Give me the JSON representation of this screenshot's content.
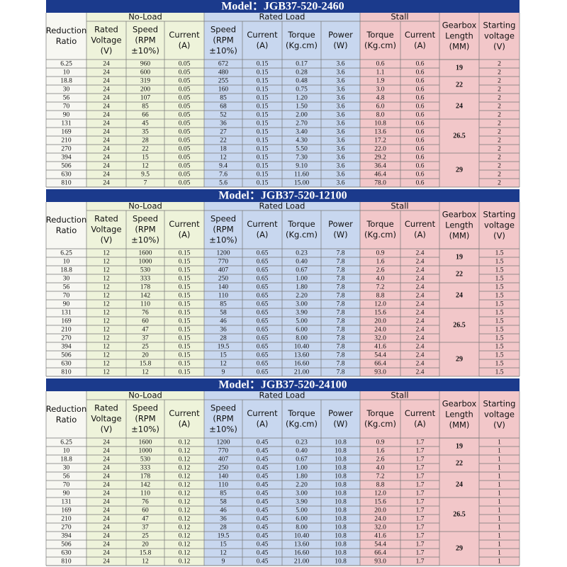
{
  "tables": [
    {
      "title": "Model：JGB37-520-2460",
      "groups": [
        "No-Load",
        "Rated Load",
        "Stall"
      ],
      "columns": [
        [
          "Reduction",
          "Ratio"
        ],
        [
          "Rated",
          "Voltage",
          "(V)"
        ],
        [
          "Speed",
          "(RPM",
          "±10%)"
        ],
        [
          "Current",
          "(A)"
        ],
        [
          "Speed",
          "(RPM",
          "±10%)"
        ],
        [
          "Current",
          "(A)"
        ],
        [
          "Torque",
          "(Kg.cm)"
        ],
        [
          "Power",
          "(W)"
        ],
        [
          "Torque",
          "(Kg.cm)"
        ],
        [
          "Current",
          "(A)"
        ],
        [
          "Gearbox",
          "Length",
          "(MM)"
        ],
        [
          "Starting",
          "voltage",
          "(V)"
        ]
      ],
      "rows": [
        [
          "6.25",
          "24",
          "960",
          "0.05",
          "672",
          "0.15",
          "0.17",
          "3.6",
          "0.6",
          "0.6",
          "19",
          "2"
        ],
        [
          "10",
          "24",
          "600",
          "0.05",
          "480",
          "0.15",
          "0.28",
          "3.6",
          "1.1",
          "0.6",
          null,
          "2"
        ],
        [
          "18.8",
          "24",
          "319",
          "0.05",
          "255",
          "0.15",
          "0.48",
          "3.6",
          "1.9",
          "0.6",
          "22",
          "2"
        ],
        [
          "30",
          "24",
          "200",
          "0.05",
          "160",
          "0.15",
          "0.75",
          "3.6",
          "3.0",
          "0.6",
          null,
          "2"
        ],
        [
          "56",
          "24",
          "107",
          "0.05",
          "85",
          "0.15",
          "1.20",
          "3.6",
          "4.8",
          "0.6",
          "24",
          "2"
        ],
        [
          "70",
          "24",
          "85",
          "0.05",
          "68",
          "0.15",
          "1.50",
          "3.6",
          "6.0",
          "0.6",
          null,
          "2"
        ],
        [
          "90",
          "24",
          "66",
          "0.05",
          "52",
          "0.15",
          "2.00",
          "3.6",
          "8.0",
          "0.6",
          null,
          "2"
        ],
        [
          "131",
          "24",
          "45",
          "0.05",
          "36",
          "0.15",
          "2.70",
          "3.6",
          "10.8",
          "0.6",
          "26.5",
          "2"
        ],
        [
          "169",
          "24",
          "35",
          "0.05",
          "27",
          "0.15",
          "3.40",
          "3.6",
          "13.6",
          "0.6",
          null,
          "2"
        ],
        [
          "210",
          "24",
          "28",
          "0.05",
          "22",
          "0.15",
          "4.30",
          "3.6",
          "17.2",
          "0.6",
          null,
          "2"
        ],
        [
          "270",
          "24",
          "22",
          "0.05",
          "18",
          "0.15",
          "5.50",
          "3.6",
          "22.0",
          "0.6",
          null,
          "2"
        ],
        [
          "394",
          "24",
          "15",
          "0.05",
          "12",
          "0.15",
          "7.30",
          "3.6",
          "29.2",
          "0.6",
          "29",
          "2"
        ],
        [
          "506",
          "24",
          "12",
          "0.05",
          "9.4",
          "0.15",
          "9.10",
          "3.6",
          "36.4",
          "0.6",
          null,
          "2"
        ],
        [
          "630",
          "24",
          "9.5",
          "0.05",
          "7.6",
          "0.15",
          "11.60",
          "3.6",
          "46.4",
          "0.6",
          null,
          "2"
        ],
        [
          "810",
          "24",
          "7",
          "0.05",
          "5.6",
          "0.15",
          "15.00",
          "3.6",
          "78.0",
          "0.6",
          null,
          "2"
        ]
      ]
    },
    {
      "title": "Model：JGB37-520-12100",
      "groups": [
        "No-Load",
        "Rated Load",
        "Stall"
      ],
      "columns": [
        [
          "Reduction",
          "Ratio"
        ],
        [
          "Rated",
          "Voltage",
          "(V)"
        ],
        [
          "Speed",
          "(RPM",
          "±10%)"
        ],
        [
          "Current",
          "(A)"
        ],
        [
          "Speed",
          "(RPM",
          "±10%)"
        ],
        [
          "Current",
          "(A)"
        ],
        [
          "Torque",
          "(Kg.cm)"
        ],
        [
          "Power",
          "(W)"
        ],
        [
          "Torque",
          "(Kg.cm)"
        ],
        [
          "Current",
          "(A)"
        ],
        [
          "Gearbox",
          "Length",
          "(MM)"
        ],
        [
          "Starting",
          "voltage",
          "(V)"
        ]
      ],
      "rows": [
        [
          "6.25",
          "12",
          "1600",
          "0.15",
          "1200",
          "0.65",
          "0.23",
          "7.8",
          "0.9",
          "2.4",
          "19",
          "1.5"
        ],
        [
          "10",
          "12",
          "1000",
          "0.15",
          "770",
          "0.65",
          "0.40",
          "7.8",
          "1.6",
          "2.4",
          null,
          "1.5"
        ],
        [
          "18.8",
          "12",
          "530",
          "0.15",
          "407",
          "0.65",
          "0.67",
          "7.8",
          "2.6",
          "2.4",
          "22",
          "1.5"
        ],
        [
          "30",
          "12",
          "333",
          "0.15",
          "250",
          "0.65",
          "1.00",
          "7.8",
          "4.0",
          "2.4",
          null,
          "1.5"
        ],
        [
          "56",
          "12",
          "178",
          "0.15",
          "140",
          "0.65",
          "1.80",
          "7.8",
          "7.2",
          "2.4",
          "24",
          "1.5"
        ],
        [
          "70",
          "12",
          "142",
          "0.15",
          "110",
          "0.65",
          "2.20",
          "7.8",
          "8.8",
          "2.4",
          null,
          "1.5"
        ],
        [
          "90",
          "12",
          "110",
          "0.15",
          "85",
          "0.65",
          "3.00",
          "7.8",
          "12.0",
          "2.4",
          null,
          "1.5"
        ],
        [
          "131",
          "12",
          "76",
          "0.15",
          "58",
          "0.65",
          "3.90",
          "7.8",
          "15.6",
          "2.4",
          "26.5",
          "1.5"
        ],
        [
          "169",
          "12",
          "60",
          "0.15",
          "46",
          "0.65",
          "5.00",
          "7.8",
          "20.0",
          "2.4",
          null,
          "1.5"
        ],
        [
          "210",
          "12",
          "47",
          "0.15",
          "36",
          "0.65",
          "6.00",
          "7.8",
          "24.0",
          "2.4",
          null,
          "1.5"
        ],
        [
          "270",
          "12",
          "37",
          "0.15",
          "28",
          "0.65",
          "8.00",
          "7.8",
          "32.0",
          "2.4",
          null,
          "1.5"
        ],
        [
          "394",
          "12",
          "25",
          "0.15",
          "19.5",
          "0.65",
          "10.40",
          "7.8",
          "41.6",
          "2.4",
          "29",
          "1.5"
        ],
        [
          "506",
          "12",
          "20",
          "0.15",
          "15",
          "0.65",
          "13.60",
          "7.8",
          "54.4",
          "2.4",
          null,
          "1.5"
        ],
        [
          "630",
          "12",
          "15.8",
          "0.15",
          "12",
          "0.65",
          "16.60",
          "7.8",
          "66.4",
          "2.4",
          null,
          "1.5"
        ],
        [
          "810",
          "12",
          "12",
          "0.15",
          "9",
          "0.65",
          "21.00",
          "7.8",
          "93.0",
          "2.4",
          null,
          "1.5"
        ]
      ]
    },
    {
      "title": "Model：JGB37-520-24100",
      "groups": [
        "No-Load",
        "Rated Load",
        "Stall"
      ],
      "columns": [
        [
          "Reduction",
          "Ratio"
        ],
        [
          "Rated",
          "Voltage",
          "(V)"
        ],
        [
          "Speed",
          "(RPM",
          "±10%)"
        ],
        [
          "Current",
          "(A)"
        ],
        [
          "Speed",
          "(RPM",
          "±10%)"
        ],
        [
          "Current",
          "(A)"
        ],
        [
          "Torque",
          "(Kg.cm)"
        ],
        [
          "Power",
          "(W)"
        ],
        [
          "Torque",
          "(Kg.cm)"
        ],
        [
          "Current",
          "(A)"
        ],
        [
          "Gearbox",
          "Length",
          "(MM)"
        ],
        [
          "Starting",
          "voltage",
          "(V)"
        ]
      ],
      "rows": [
        [
          "6.25",
          "24",
          "1600",
          "0.12",
          "1200",
          "0.45",
          "0.23",
          "10.8",
          "0.9",
          "1.7",
          "19",
          "1"
        ],
        [
          "10",
          "24",
          "1000",
          "0.12",
          "770",
          "0.45",
          "0.40",
          "10.8",
          "1.6",
          "1.7",
          null,
          "1"
        ],
        [
          "18.8",
          "24",
          "530",
          "0.12",
          "407",
          "0.45",
          "0.67",
          "10.8",
          "2.6",
          "1.7",
          "22",
          "1"
        ],
        [
          "30",
          "24",
          "333",
          "0.12",
          "250",
          "0.45",
          "1.00",
          "10.8",
          "4.0",
          "1.7",
          null,
          "1"
        ],
        [
          "56",
          "24",
          "178",
          "0.12",
          "140",
          "0.45",
          "1.80",
          "10.8",
          "7.2",
          "1.7",
          "24",
          "1"
        ],
        [
          "70",
          "24",
          "142",
          "0.12",
          "110",
          "0.45",
          "2.20",
          "10.8",
          "8.8",
          "1.7",
          null,
          "1"
        ],
        [
          "90",
          "24",
          "110",
          "0.12",
          "85",
          "0.45",
          "3.00",
          "10.8",
          "12.0",
          "1.7",
          null,
          "1"
        ],
        [
          "131",
          "24",
          "76",
          "0.12",
          "58",
          "0.45",
          "3.90",
          "10.8",
          "15.6",
          "1.7",
          "26.5",
          "1"
        ],
        [
          "169",
          "24",
          "60",
          "0.12",
          "46",
          "0.45",
          "5.00",
          "10.8",
          "20.0",
          "1.7",
          null,
          "1"
        ],
        [
          "210",
          "24",
          "47",
          "0.12",
          "36",
          "0.45",
          "6.00",
          "10.8",
          "24.0",
          "1.7",
          null,
          "1"
        ],
        [
          "270",
          "24",
          "37",
          "0.12",
          "28",
          "0.45",
          "8.00",
          "10.8",
          "32.0",
          "1.7",
          null,
          "1"
        ],
        [
          "394",
          "24",
          "25",
          "0.12",
          "19.5",
          "0.45",
          "10.40",
          "10.8",
          "41.6",
          "1.7",
          "29",
          "1"
        ],
        [
          "506",
          "24",
          "20",
          "0.12",
          "15",
          "0.45",
          "13.60",
          "10.8",
          "54.4",
          "1.7",
          null,
          "1"
        ],
        [
          "630",
          "24",
          "15.8",
          "0.12",
          "12",
          "0.45",
          "16.60",
          "10.8",
          "66.4",
          "1.7",
          null,
          "1"
        ],
        [
          "810",
          "24",
          "12",
          "0.12",
          "9",
          "0.45",
          "21.00",
          "10.8",
          "93.0",
          "1.7",
          null,
          "1"
        ]
      ]
    }
  ]
}
